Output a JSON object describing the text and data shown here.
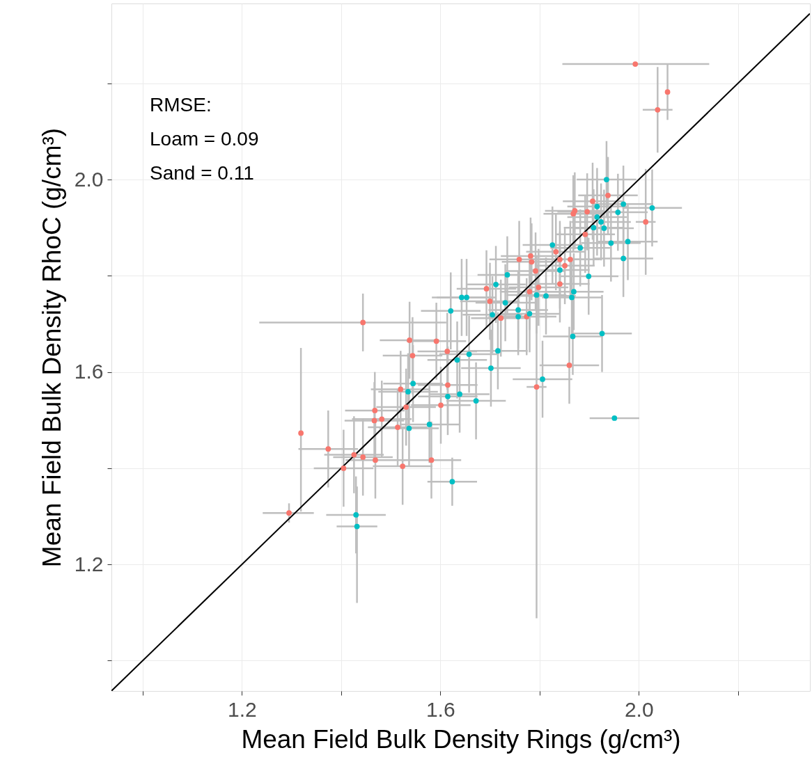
{
  "chart_data": {
    "type": "scatter",
    "xlabel": "Mean Field Bulk Density Rings (g/cm³)",
    "ylabel": "Mean Field Bulk Density RhoC (g/cm³)",
    "annotations": [
      "RMSE:",
      "Loam =  0.09",
      "Sand =  0.11"
    ],
    "xlim": [
      0.937,
      2.345
    ],
    "ylim": [
      0.937,
      2.366
    ],
    "xticks": [
      {
        "value": 1.0,
        "label": null
      },
      1.2,
      {
        "value": 1.4,
        "label": null
      },
      1.6,
      {
        "value": 1.8,
        "label": null
      },
      {
        "value": 2.0,
        "label": "2.0"
      },
      {
        "value": 2.2,
        "label": null
      }
    ],
    "yticks": [
      {
        "value": 1.0,
        "label": null
      },
      1.2,
      {
        "value": 1.4,
        "label": null
      },
      1.6,
      {
        "value": 1.8,
        "label": null
      },
      {
        "value": 2.0,
        "label": "2.0"
      },
      {
        "value": 2.2,
        "label": null
      }
    ],
    "grid": true,
    "series": [
      {
        "type": "line",
        "color": "#000000",
        "marker": "none",
        "x": [
          0.937,
          2.345
        ],
        "values": [
          0.937,
          2.345
        ]
      },
      {
        "marker": "circle",
        "color": "#f8766d",
        "x": [
          1.993,
          2.058,
          2.038,
          2.014,
          1.938,
          1.907,
          1.871,
          1.868,
          1.896,
          1.892,
          1.833,
          1.759,
          1.782,
          1.784,
          1.841,
          1.862,
          1.851,
          1.792,
          1.841,
          1.693,
          1.798,
          1.78,
          1.7,
          1.722,
          1.774,
          1.614,
          1.86,
          1.444,
          1.538,
          1.592,
          1.544,
          1.52,
          1.615,
          1.531,
          1.601,
          1.468,
          1.467,
          1.482,
          1.514,
          1.319,
          1.374,
          1.426,
          1.444,
          1.469,
          1.405,
          1.524,
          1.295,
          1.582,
          1.794
        ],
        "values": [
          2.24,
          2.182,
          2.145,
          1.912,
          1.967,
          1.955,
          1.935,
          1.929,
          1.933,
          1.886,
          1.85,
          1.834,
          1.841,
          1.829,
          1.834,
          1.834,
          1.821,
          1.81,
          1.783,
          1.773,
          1.776,
          1.767,
          1.747,
          1.712,
          1.715,
          1.643,
          1.614,
          1.703,
          1.666,
          1.664,
          1.634,
          1.564,
          1.573,
          1.527,
          1.531,
          1.52,
          1.499,
          1.502,
          1.485,
          1.473,
          1.44,
          1.428,
          1.423,
          1.417,
          1.4,
          1.404,
          1.307,
          1.417,
          1.569
        ],
        "xerrors": [
          [
            1.846,
            2.142
          ],
          null,
          0.03,
          0.02,
          0.06,
          0.06,
          0.06,
          0.06,
          0.06,
          0.06,
          0.06,
          0.06,
          0.06,
          0.06,
          0.06,
          0.06,
          0.06,
          0.06,
          0.06,
          0.06,
          0.06,
          0.06,
          0.06,
          0.06,
          0.06,
          0.06,
          0.06,
          [
            1.235,
            1.612
          ],
          0.06,
          0.06,
          0.06,
          0.06,
          0.06,
          0.06,
          0.06,
          0.06,
          0.06,
          0.06,
          0.06,
          null,
          0.06,
          0.06,
          0.06,
          0.06,
          0.06,
          0.06,
          [
            1.242,
            1.345
          ],
          0.06,
          0.02
        ],
        "errors": [
          null,
          0.058,
          0.089,
          0.11,
          0.08,
          0.08,
          0.08,
          0.08,
          0.08,
          0.08,
          0.08,
          0.08,
          0.08,
          0.08,
          0.08,
          0.08,
          0.08,
          0.08,
          0.08,
          0.08,
          0.08,
          0.08,
          0.08,
          0.08,
          0.08,
          0.08,
          0.08,
          0.06,
          0.08,
          0.08,
          0.08,
          0.08,
          0.08,
          0.08,
          0.08,
          0.08,
          0.08,
          0.08,
          0.08,
          [
            1.31,
            1.65
          ],
          0.08,
          0.08,
          0.08,
          0.08,
          0.08,
          0.08,
          0.02,
          0.08,
          [
            1.088,
            1.82
          ]
        ]
      },
      {
        "marker": "circle",
        "color": "#00bfc4",
        "x": [
          1.935,
          1.916,
          1.969,
          2.027,
          1.958,
          1.916,
          1.924,
          1.909,
          1.93,
          1.826,
          1.882,
          1.944,
          1.978,
          1.969,
          1.841,
          1.899,
          1.735,
          1.712,
          1.643,
          1.653,
          1.731,
          1.794,
          1.813,
          1.869,
          1.865,
          1.621,
          1.705,
          1.757,
          1.757,
          1.78,
          1.867,
          1.926,
          1.716,
          1.658,
          1.634,
          1.702,
          1.545,
          1.535,
          1.639,
          1.615,
          1.672,
          1.578,
          1.537,
          1.43,
          1.432,
          1.624,
          1.951,
          1.806
        ],
        "values": [
          2.0,
          1.944,
          1.949,
          1.941,
          1.932,
          1.922,
          1.912,
          1.9,
          1.899,
          1.864,
          1.858,
          1.868,
          1.871,
          1.836,
          1.812,
          1.799,
          1.802,
          1.782,
          1.755,
          1.755,
          1.744,
          1.76,
          1.758,
          1.767,
          1.755,
          1.727,
          1.719,
          1.729,
          1.715,
          1.721,
          1.674,
          1.68,
          1.644,
          1.637,
          1.625,
          1.608,
          1.576,
          1.559,
          1.554,
          1.549,
          1.54,
          1.491,
          1.483,
          1.303,
          1.279,
          1.372,
          1.504,
          1.585
        ],
        "xerrors": [
          0.06,
          0.06,
          0.06,
          0.06,
          0.06,
          0.06,
          0.06,
          0.06,
          0.06,
          0.06,
          0.06,
          0.06,
          0.06,
          0.06,
          0.06,
          0.06,
          0.06,
          0.06,
          0.06,
          0.06,
          0.06,
          0.06,
          0.06,
          0.06,
          0.06,
          0.06,
          0.06,
          0.06,
          0.06,
          0.06,
          0.06,
          0.06,
          0.06,
          0.06,
          0.06,
          0.06,
          0.06,
          0.06,
          0.06,
          0.06,
          0.06,
          0.06,
          0.06,
          0.06,
          [
            1.391,
            1.473
          ],
          0.05,
          0.05,
          0.06
        ],
        "errors": [
          0.08,
          0.08,
          0.08,
          0.08,
          0.08,
          0.08,
          0.08,
          0.08,
          0.08,
          0.08,
          0.08,
          0.08,
          0.08,
          0.08,
          0.08,
          0.08,
          0.08,
          0.08,
          0.08,
          0.08,
          0.08,
          0.08,
          0.08,
          0.08,
          0.08,
          0.08,
          0.08,
          0.08,
          0.08,
          0.08,
          0.08,
          0.08,
          0.08,
          0.08,
          0.08,
          0.08,
          0.08,
          0.08,
          0.08,
          0.08,
          0.08,
          0.08,
          0.08,
          0.08,
          [
            1.12,
            1.362
          ],
          0.05,
          null,
          0.08
        ]
      }
    ]
  }
}
